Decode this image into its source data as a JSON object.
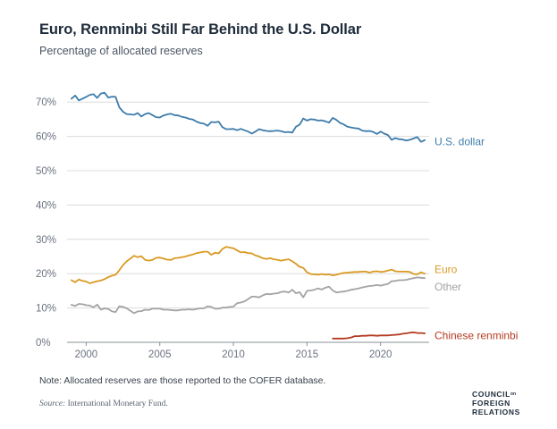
{
  "title": "Euro, Renminbi Still Far Behind the U.S. Dollar",
  "subtitle": "Percentage of allocated reserves",
  "note": "Note: Allocated reserves are those reported to the COFER database.",
  "source_label": "Source:",
  "source_text": " International Monetary Fund.",
  "logo": {
    "line1": "COUNCIL",
    "on": "on",
    "line2": "FOREIGN",
    "line3": "RELATIONS"
  },
  "colors": {
    "usd": "#3d7cab",
    "euro": "#d99a22",
    "other": "#a3a3a3",
    "rmb": "#b43b22",
    "grid": "#dcdcdc",
    "axis": "#6b7280"
  },
  "chart_data": {
    "type": "line",
    "title": "Euro, Renminbi Still Far Behind the U.S. Dollar",
    "ylabel": "Percentage of allocated reserves",
    "xlabel": "",
    "xlim": [
      1998.7,
      2023.3
    ],
    "ylim": [
      0,
      75
    ],
    "yticks": [
      0,
      10,
      20,
      30,
      40,
      50,
      60,
      70
    ],
    "ytick_labels": [
      "0%",
      "10%",
      "20%",
      "30%",
      "40%",
      "50%",
      "60%",
      "70%"
    ],
    "xticks": [
      2000,
      2005,
      2010,
      2015,
      2020
    ],
    "xtick_labels": [
      "2000",
      "2005",
      "2010",
      "2015",
      "2020"
    ],
    "series": [
      {
        "name": "U.S. dollar",
        "key": "usd",
        "x": [
          1999.0,
          1999.25,
          1999.5,
          1999.75,
          2000.0,
          2000.25,
          2000.5,
          2000.75,
          2001.0,
          2001.25,
          2001.5,
          2001.75,
          2002.0,
          2002.25,
          2002.5,
          2002.75,
          2003.0,
          2003.25,
          2003.5,
          2003.75,
          2004.0,
          2004.25,
          2004.5,
          2004.75,
          2005.0,
          2005.25,
          2005.5,
          2005.75,
          2006.0,
          2006.25,
          2006.5,
          2006.75,
          2007.0,
          2007.25,
          2007.5,
          2007.75,
          2008.0,
          2008.25,
          2008.5,
          2008.75,
          2009.0,
          2009.25,
          2009.5,
          2009.75,
          2010.0,
          2010.25,
          2010.5,
          2010.75,
          2011.0,
          2011.25,
          2011.5,
          2011.75,
          2012.0,
          2012.25,
          2012.5,
          2012.75,
          2013.0,
          2013.25,
          2013.5,
          2013.75,
          2014.0,
          2014.25,
          2014.5,
          2014.75,
          2015.0,
          2015.25,
          2015.5,
          2015.75,
          2016.0,
          2016.25,
          2016.5,
          2016.75,
          2017.0,
          2017.25,
          2017.5,
          2017.75,
          2018.0,
          2018.25,
          2018.5,
          2018.75,
          2019.0,
          2019.25,
          2019.5,
          2019.75,
          2020.0,
          2020.25,
          2020.5,
          2020.75,
          2021.0,
          2021.25,
          2021.5,
          2021.75,
          2022.0,
          2022.25,
          2022.5,
          2022.75,
          2023.0
        ],
        "values": [
          71.0,
          71.9,
          70.5,
          71.0,
          71.5,
          72.1,
          72.3,
          71.2,
          72.5,
          72.7,
          71.3,
          71.6,
          71.5,
          68.5,
          67.2,
          66.5,
          66.4,
          66.3,
          66.8,
          65.8,
          66.5,
          66.8,
          66.2,
          65.6,
          65.5,
          66.1,
          66.4,
          66.6,
          66.2,
          66.1,
          65.7,
          65.5,
          65.1,
          64.9,
          64.3,
          63.9,
          63.7,
          63.1,
          64.2,
          64.1,
          64.3,
          62.7,
          62.1,
          62.1,
          62.2,
          61.8,
          62.2,
          61.8,
          61.4,
          60.8,
          61.4,
          62.1,
          61.8,
          61.6,
          61.5,
          61.6,
          61.7,
          61.5,
          61.2,
          61.3,
          61.1,
          62.8,
          63.4,
          65.2,
          64.6,
          65.0,
          64.9,
          64.6,
          64.7,
          64.4,
          64.0,
          65.4,
          64.8,
          63.9,
          63.5,
          62.8,
          62.6,
          62.4,
          62.3,
          61.7,
          61.5,
          61.6,
          61.3,
          60.7,
          61.4,
          60.8,
          60.4,
          59.0,
          59.5,
          59.2,
          59.1,
          58.8,
          59.0,
          59.4,
          59.8,
          58.4,
          58.9
        ]
      },
      {
        "name": "Euro",
        "key": "euro",
        "x": [
          1999.0,
          1999.25,
          1999.5,
          1999.75,
          2000.0,
          2000.25,
          2000.5,
          2000.75,
          2001.0,
          2001.25,
          2001.5,
          2001.75,
          2002.0,
          2002.25,
          2002.5,
          2002.75,
          2003.0,
          2003.25,
          2003.5,
          2003.75,
          2004.0,
          2004.25,
          2004.5,
          2004.75,
          2005.0,
          2005.25,
          2005.5,
          2005.75,
          2006.0,
          2006.25,
          2006.5,
          2006.75,
          2007.0,
          2007.25,
          2007.5,
          2007.75,
          2008.0,
          2008.25,
          2008.5,
          2008.75,
          2009.0,
          2009.25,
          2009.5,
          2009.75,
          2010.0,
          2010.25,
          2010.5,
          2010.75,
          2011.0,
          2011.25,
          2011.5,
          2011.75,
          2012.0,
          2012.25,
          2012.5,
          2012.75,
          2013.0,
          2013.25,
          2013.5,
          2013.75,
          2014.0,
          2014.25,
          2014.5,
          2014.75,
          2015.0,
          2015.25,
          2015.5,
          2015.75,
          2016.0,
          2016.25,
          2016.5,
          2016.75,
          2017.0,
          2017.25,
          2017.5,
          2017.75,
          2018.0,
          2018.25,
          2018.5,
          2018.75,
          2019.0,
          2019.25,
          2019.5,
          2019.75,
          2020.0,
          2020.25,
          2020.5,
          2020.75,
          2021.0,
          2021.25,
          2021.5,
          2021.75,
          2022.0,
          2022.25,
          2022.5,
          2022.75,
          2023.0
        ],
        "values": [
          18.1,
          17.5,
          18.3,
          17.9,
          17.7,
          17.2,
          17.5,
          17.8,
          18.0,
          18.4,
          19.0,
          19.4,
          19.7,
          21.0,
          22.5,
          23.6,
          24.4,
          25.2,
          24.8,
          25.1,
          24.0,
          23.8,
          24.0,
          24.6,
          24.7,
          24.4,
          24.1,
          24.0,
          24.5,
          24.6,
          24.8,
          25.0,
          25.3,
          25.6,
          26.0,
          26.2,
          26.4,
          26.4,
          25.5,
          26.1,
          25.9,
          27.2,
          27.8,
          27.6,
          27.4,
          26.8,
          26.2,
          26.3,
          26.0,
          25.9,
          25.3,
          25.0,
          24.5,
          24.3,
          24.5,
          24.2,
          24.0,
          23.8,
          24.0,
          24.2,
          23.6,
          22.9,
          22.0,
          21.7,
          20.4,
          19.9,
          19.8,
          19.7,
          19.9,
          19.7,
          19.8,
          19.5,
          19.7,
          20.0,
          20.2,
          20.3,
          20.4,
          20.5,
          20.5,
          20.6,
          20.6,
          20.3,
          20.6,
          20.7,
          20.5,
          20.6,
          20.9,
          21.2,
          20.7,
          20.6,
          20.6,
          20.6,
          20.5,
          19.9,
          19.8,
          20.4,
          20.0
        ]
      },
      {
        "name": "Other",
        "key": "other",
        "x": [
          1999.0,
          1999.25,
          1999.5,
          1999.75,
          2000.0,
          2000.25,
          2000.5,
          2000.75,
          2001.0,
          2001.25,
          2001.5,
          2001.75,
          2002.0,
          2002.25,
          2002.5,
          2002.75,
          2003.0,
          2003.25,
          2003.5,
          2003.75,
          2004.0,
          2004.25,
          2004.5,
          2004.75,
          2005.0,
          2005.25,
          2005.5,
          2005.75,
          2006.0,
          2006.25,
          2006.5,
          2006.75,
          2007.0,
          2007.25,
          2007.5,
          2007.75,
          2008.0,
          2008.25,
          2008.5,
          2008.75,
          2009.0,
          2009.25,
          2009.5,
          2009.75,
          2010.0,
          2010.25,
          2010.5,
          2010.75,
          2011.0,
          2011.25,
          2011.5,
          2011.75,
          2012.0,
          2012.25,
          2012.5,
          2012.75,
          2013.0,
          2013.25,
          2013.5,
          2013.75,
          2014.0,
          2014.25,
          2014.5,
          2014.75,
          2015.0,
          2015.25,
          2015.5,
          2015.75,
          2016.0,
          2016.25,
          2016.5,
          2016.75,
          2017.0,
          2017.25,
          2017.5,
          2017.75,
          2018.0,
          2018.25,
          2018.5,
          2018.75,
          2019.0,
          2019.25,
          2019.5,
          2019.75,
          2020.0,
          2020.25,
          2020.5,
          2020.75,
          2021.0,
          2021.25,
          2021.5,
          2021.75,
          2022.0,
          2022.25,
          2022.5,
          2022.75,
          2023.0
        ],
        "values": [
          10.9,
          10.6,
          11.2,
          11.1,
          10.8,
          10.7,
          10.2,
          11.0,
          9.5,
          9.9,
          9.7,
          9.0,
          8.8,
          10.5,
          10.3,
          9.9,
          9.2,
          8.5,
          9.0,
          9.1,
          9.5,
          9.4,
          9.8,
          9.8,
          9.8,
          9.5,
          9.5,
          9.4,
          9.3,
          9.3,
          9.5,
          9.5,
          9.6,
          9.5,
          9.7,
          9.9,
          9.9,
          10.5,
          10.3,
          9.8,
          9.8,
          10.1,
          10.1,
          10.3,
          10.4,
          11.4,
          11.6,
          11.9,
          12.6,
          13.3,
          13.3,
          13.1,
          13.7,
          14.1,
          14.0,
          14.2,
          14.3,
          14.7,
          14.8,
          14.5,
          15.3,
          14.3,
          14.6,
          13.1,
          15.0,
          15.1,
          15.3,
          15.7,
          15.4,
          15.9,
          16.2,
          15.1,
          14.5,
          14.7,
          14.8,
          15.0,
          15.3,
          15.5,
          15.7,
          16.0,
          16.2,
          16.4,
          16.5,
          16.7,
          16.5,
          16.8,
          17.0,
          17.8,
          17.9,
          18.1,
          18.1,
          18.2,
          18.5,
          18.7,
          18.9,
          18.8,
          18.7
        ]
      },
      {
        "name": "Chinese renminbi",
        "key": "rmb",
        "x": [
          2016.75,
          2017.0,
          2017.25,
          2017.5,
          2017.75,
          2018.0,
          2018.25,
          2018.5,
          2018.75,
          2019.0,
          2019.25,
          2019.5,
          2019.75,
          2020.0,
          2020.25,
          2020.5,
          2020.75,
          2021.0,
          2021.25,
          2021.5,
          2021.75,
          2022.0,
          2022.25,
          2022.5,
          2022.75,
          2023.0
        ],
        "values": [
          1.1,
          1.1,
          1.1,
          1.1,
          1.2,
          1.4,
          1.8,
          1.8,
          1.9,
          1.9,
          2.0,
          2.0,
          1.9,
          2.0,
          2.0,
          2.0,
          2.1,
          2.2,
          2.3,
          2.5,
          2.6,
          2.8,
          2.9,
          2.7,
          2.7,
          2.6
        ]
      }
    ],
    "end_labels": [
      {
        "key": "usd",
        "text": "U.S. dollar",
        "y": 58.5
      },
      {
        "key": "euro",
        "text": "Euro",
        "y": 21.2
      },
      {
        "key": "other",
        "text": "Other",
        "y": 16.2
      },
      {
        "key": "rmb",
        "text": "Chinese renminbi",
        "y": 2.0
      }
    ]
  }
}
